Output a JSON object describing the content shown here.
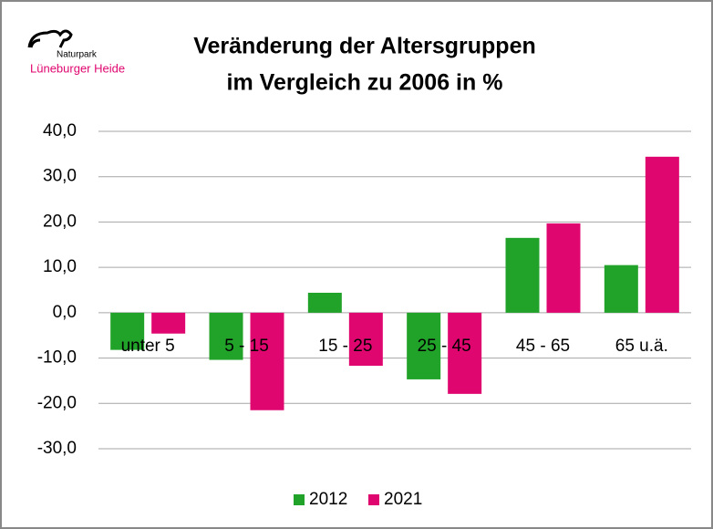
{
  "logo": {
    "line1": "Naturpark",
    "line2": "Lüneburger Heide"
  },
  "chart_data": {
    "type": "bar",
    "title": [
      "Veränderung der Altersgruppen",
      "im Vergleich zu 2006 in %"
    ],
    "categories": [
      "unter 5",
      "5 - 15",
      "15 - 25",
      "25 - 45",
      "45 - 65",
      "65 u.ä."
    ],
    "series": [
      {
        "name": "2012",
        "color": "#21a229",
        "values": [
          -8.2,
          -10.4,
          4.4,
          -14.7,
          16.5,
          10.5
        ]
      },
      {
        "name": "2021",
        "color": "#e0066f",
        "values": [
          -4.6,
          -21.5,
          -11.7,
          -17.9,
          19.7,
          34.4
        ]
      }
    ],
    "ylim": [
      -30,
      40
    ],
    "yticks": [
      {
        "value": -30,
        "label": "-30,0"
      },
      {
        "value": -20,
        "label": "-20,0"
      },
      {
        "value": -10,
        "label": "-10,0"
      },
      {
        "value": 0,
        "label": "0,0"
      },
      {
        "value": 10,
        "label": "10,0"
      },
      {
        "value": 20,
        "label": "20,0"
      },
      {
        "value": 30,
        "label": "30,0"
      },
      {
        "value": 40,
        "label": "40,0"
      }
    ],
    "grid": true,
    "legend": "bottom"
  }
}
